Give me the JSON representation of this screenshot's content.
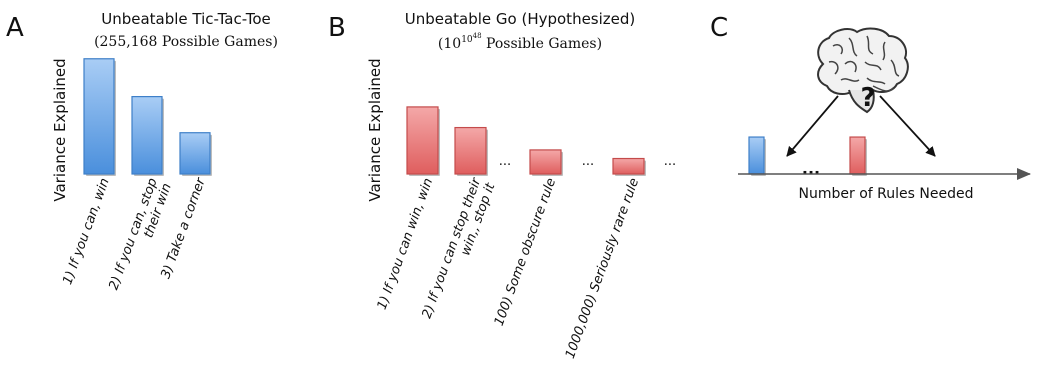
{
  "panels": {
    "a": {
      "letter": "A"
    },
    "b": {
      "letter": "B"
    },
    "c": {
      "letter": "C"
    }
  },
  "colors": {
    "blue_bar": "#5b9be0",
    "red_bar": "#e36a6a",
    "axis": "#555555"
  },
  "chart_data": [
    {
      "type": "bar",
      "title": "Unbeatable Tic-Tac-Toe",
      "subtitle": "(255,168 Possible Games)",
      "ylabel": "Variance Explained",
      "xlabel": "",
      "categories": [
        [
          "1) If you can, win"
        ],
        [
          "2) If you can, stop",
          "their win"
        ],
        [
          "3) Take a corner"
        ]
      ],
      "values": [
        0.67,
        0.45,
        0.24
      ],
      "ylim": [
        0,
        1
      ],
      "color": "blue"
    },
    {
      "type": "bar",
      "title": "Unbeatable Go (Hypothesized)",
      "subtitle_base": "(10",
      "subtitle_exp1": "10",
      "subtitle_exp2": "48",
      "subtitle_rest": " Possible Games)",
      "ylabel": "Variance Explained",
      "xlabel": "",
      "categories": [
        [
          "1) If you can win, win"
        ],
        [
          "2) If you can stop their",
          "win,, stop it"
        ],
        [
          "100) Some obscure rule"
        ],
        [
          "1000,000) Seriously rare rule"
        ]
      ],
      "values": [
        0.39,
        0.27,
        0.14,
        0.09
      ],
      "ellipsis_after": [
        "...",
        "...",
        "..."
      ],
      "ylim": [
        0,
        1
      ],
      "color": "red"
    },
    {
      "type": "diagram",
      "axis_label": "Number of Rules Needed",
      "question_mark": "?",
      "ellipsis": "...",
      "bars": [
        {
          "color": "blue",
          "value": 0.33
        },
        {
          "color": "red",
          "value": 0.33
        }
      ]
    }
  ]
}
